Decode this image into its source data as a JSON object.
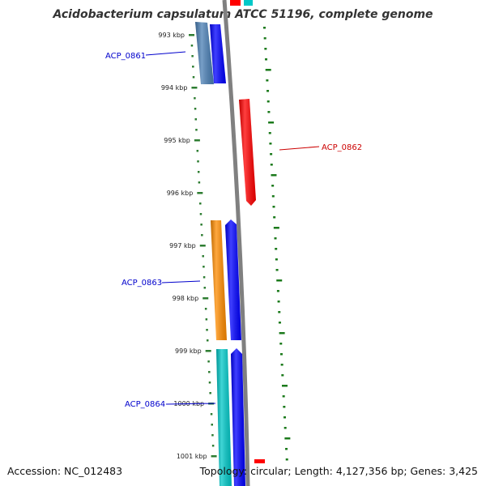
{
  "title": "Acidobacterium capsulatum ATCC 51196, complete genome",
  "footer": {
    "accession": "Accession: NC_012483",
    "summary": "Topology: circular; Length: 4,127,356 bp; Genes: 3,425"
  },
  "colors": {
    "background": "#ffffff",
    "backbone": "#808080",
    "tick": "#2e7d32",
    "gc_dots": "#1b7a1b",
    "label_blue": "#0000cc",
    "label_red": "#cc0000"
  },
  "ruler": {
    "ticks": [
      {
        "label": "993 kbp",
        "value": 993
      },
      {
        "label": "994 kbp",
        "value": 994
      },
      {
        "label": "995 kbp",
        "value": 995
      },
      {
        "label": "996 kbp",
        "value": 996
      },
      {
        "label": "997 kbp",
        "value": 997
      },
      {
        "label": "998 kbp",
        "value": 998
      },
      {
        "label": "999 kbp",
        "value": 999
      },
      {
        "label": "1000 kbp",
        "value": 1000
      },
      {
        "label": "1001 kbp",
        "value": 1001
      }
    ]
  },
  "features": [
    {
      "name": "ACP_0861",
      "type": "CDS",
      "color": "#4a7fb5",
      "strand": "reverse"
    },
    {
      "name": "ACP_0861",
      "type": "gene",
      "color": "#0000ff",
      "strand": "reverse"
    },
    {
      "name": "ACP_0862",
      "type": "gene",
      "color": "#ff0000",
      "strand": "forward"
    },
    {
      "name": "ACP_0863",
      "type": "CDS",
      "color": "#ff8c00",
      "strand": "reverse"
    },
    {
      "name": "ACP_0863",
      "type": "gene",
      "color": "#0000ff",
      "strand": "reverse"
    },
    {
      "name": "ACP_0864",
      "type": "CDS",
      "color": "#00c8c8",
      "strand": "reverse"
    },
    {
      "name": "ACP_0864",
      "type": "gene",
      "color": "#0000ff",
      "strand": "reverse"
    }
  ],
  "labels": [
    {
      "text": "ACP_0861",
      "color": "#0000cc"
    },
    {
      "text": "ACP_0862",
      "color": "#cc0000"
    },
    {
      "text": "ACP_0863",
      "color": "#0000cc"
    },
    {
      "text": "ACP_0864",
      "color": "#0000cc"
    }
  ]
}
